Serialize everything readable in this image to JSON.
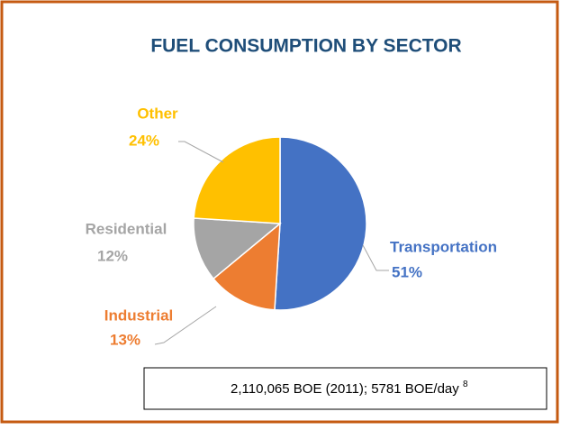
{
  "chart_data": {
    "type": "pie",
    "title": "FUEL CONSUMPTION BY SECTOR",
    "categories": [
      "Transportation",
      "Industrial",
      "Residential",
      "Other"
    ],
    "values": [
      51,
      13,
      12,
      24
    ],
    "value_labels": [
      "51%",
      "13%",
      "12%",
      "24%"
    ],
    "colors": [
      "#4472c4",
      "#ed7d31",
      "#a5a5a5",
      "#ffc000"
    ],
    "note": "2,110,065 BOE (2011); 5781 BOE/day",
    "note_ref": "8"
  }
}
